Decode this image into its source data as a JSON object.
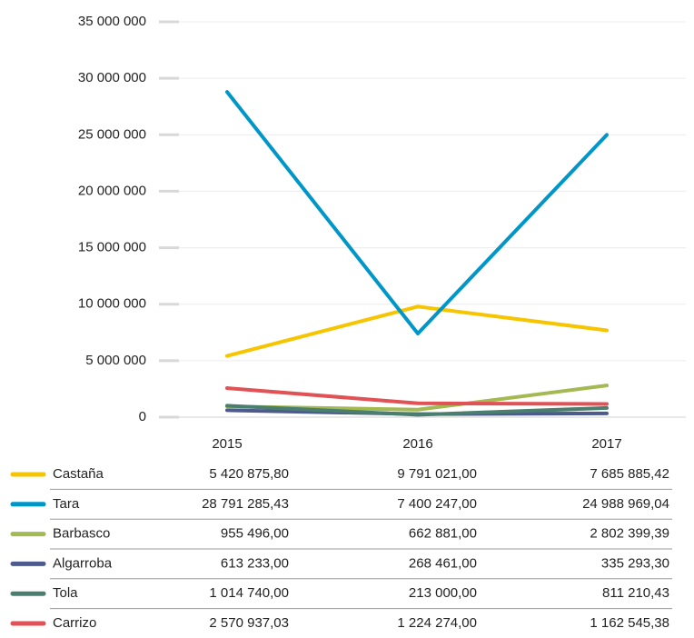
{
  "chart_data": {
    "type": "line",
    "categories": [
      "2015",
      "2016",
      "2017"
    ],
    "series": [
      {
        "name": "Castaña",
        "color": "#f7c400",
        "values": [
          5420875.8,
          9791021.0,
          7685885.42
        ],
        "value_labels": [
          "5 420 875,80",
          "9 791 021,00",
          "7 685 885,42"
        ]
      },
      {
        "name": "Tara",
        "color": "#0096c8",
        "values": [
          28791285.43,
          7400247.0,
          24988969.04
        ],
        "value_labels": [
          "28 791 285,43",
          "7 400 247,00",
          "24 988 969,04"
        ]
      },
      {
        "name": "Barbasco",
        "color": "#a3b952",
        "values": [
          955496.0,
          662881.0,
          2802399.39
        ],
        "value_labels": [
          "955 496,00",
          "662 881,00",
          "2 802 399,39"
        ]
      },
      {
        "name": "Algarroba",
        "color": "#4d5a8c",
        "values": [
          613233.0,
          268461.0,
          335293.3
        ],
        "value_labels": [
          "613 233,00",
          "268 461,00",
          "335 293,30"
        ]
      },
      {
        "name": "Tola",
        "color": "#4a7f6f",
        "values": [
          1014740.0,
          213000.0,
          811210.43
        ],
        "value_labels": [
          "1 014 740,00",
          "213 000,00",
          "811 210,43"
        ]
      },
      {
        "name": "Carrizo",
        "color": "#e05255",
        "values": [
          2570937.03,
          1224274.0,
          1162545.38
        ],
        "value_labels": [
          "2 570 937,03",
          "1 224 274,00",
          "1 162 545,38"
        ]
      }
    ],
    "ylim": [
      0,
      35000000
    ],
    "yticks": [
      0,
      {
        "value": 5000000,
        "label": "5 000 000"
      },
      {
        "value": 10000000,
        "label": "10 000 000"
      },
      {
        "value": 15000000,
        "label": "15 000 000"
      },
      {
        "value": 20000000,
        "label": "20 000 000"
      },
      {
        "value": 25000000,
        "label": "25 000 000"
      },
      {
        "value": 30000000,
        "label": "30 000 000"
      },
      {
        "value": 35000000,
        "label": "35 000 000"
      }
    ],
    "grid": true
  }
}
